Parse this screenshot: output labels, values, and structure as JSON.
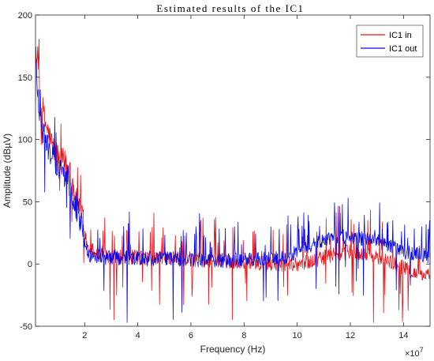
{
  "chart_data": {
    "type": "line",
    "title": "Estimated results of the IC1",
    "xlabel": "Frequency  (Hz)",
    "ylabel": "Amplitude  (dBµV)",
    "x_exponent_label": "×10",
    "x_exponent_power": "7",
    "xlim": [
      0.15,
      15
    ],
    "ylim": [
      -50,
      200
    ],
    "x_ticks": [
      2,
      4,
      6,
      8,
      10,
      12,
      14
    ],
    "x_tick_labels": [
      "2",
      "4",
      "6",
      "8",
      "10",
      "12",
      "14"
    ],
    "y_ticks": [
      -50,
      0,
      50,
      100,
      150,
      200
    ],
    "y_tick_labels": [
      "-50",
      "0",
      "50",
      "100",
      "150",
      "200"
    ],
    "grid": false,
    "legend_position": "top-right",
    "series": [
      {
        "name": "IC1 in",
        "color": "#e8161b",
        "x": [
          0.15,
          0.3,
          0.5,
          0.7,
          0.9,
          1.1,
          1.3,
          1.5,
          1.7,
          1.9,
          2.1,
          2.5,
          3.0,
          3.5,
          4.0,
          4.5,
          5.0,
          5.5,
          6.0,
          6.5,
          7.0,
          7.5,
          8.0,
          8.5,
          9.0,
          9.5,
          10.0,
          10.5,
          11.0,
          11.5,
          12.0,
          12.5,
          13.0,
          13.5,
          14.0,
          14.5,
          15.0
        ],
        "y": [
          175,
          140,
          115,
          100,
          90,
          85,
          80,
          70,
          50,
          40,
          15,
          8,
          6,
          6,
          5,
          5,
          5,
          4,
          4,
          3,
          3,
          2,
          2,
          1,
          0,
          0,
          0,
          2,
          5,
          8,
          10,
          8,
          5,
          2,
          -3,
          -8,
          -10
        ]
      },
      {
        "name": "IC1 out",
        "color": "#0a0ae6",
        "x": [
          0.15,
          0.3,
          0.5,
          0.7,
          0.9,
          1.1,
          1.3,
          1.5,
          1.7,
          1.9,
          2.1,
          2.5,
          3.0,
          3.5,
          4.0,
          4.5,
          5.0,
          5.5,
          6.0,
          6.5,
          7.0,
          7.5,
          8.0,
          8.5,
          9.0,
          9.5,
          10.0,
          10.5,
          11.0,
          11.5,
          12.0,
          12.5,
          13.0,
          13.5,
          14.0,
          14.5,
          15.0
        ],
        "y": [
          165,
          120,
          100,
          90,
          82,
          75,
          70,
          60,
          45,
          30,
          8,
          5,
          5,
          5,
          4,
          4,
          4,
          4,
          4,
          3,
          3,
          3,
          3,
          4,
          5,
          6,
          10,
          15,
          20,
          22,
          22,
          20,
          18,
          15,
          10,
          8,
          6
        ]
      }
    ]
  }
}
